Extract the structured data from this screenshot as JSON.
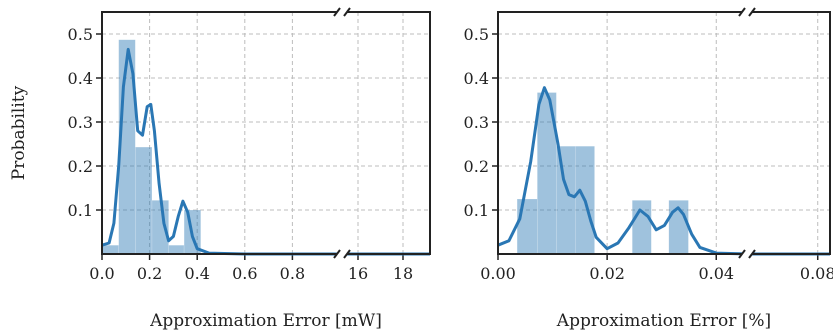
{
  "chart_data": [
    {
      "type": "histogram+kde",
      "panel": "left",
      "xlabel": "Approximation Error [mW]",
      "ylabel": "Probability",
      "ylim": [
        0,
        0.55
      ],
      "yticks": [
        0.1,
        0.2,
        0.3,
        0.4,
        0.5
      ],
      "broken_x_axis": true,
      "x_segments": [
        {
          "xlim": [
            0.0,
            1.0
          ],
          "ticks": [
            0.0,
            0.2,
            0.4,
            0.6,
            0.8
          ],
          "tick_labels": [
            "0.0",
            "0.2",
            "0.4",
            "0.6",
            "0.8"
          ]
        },
        {
          "xlim": [
            15.2,
            19.2
          ],
          "ticks": [
            16,
            18
          ],
          "tick_labels": [
            "16",
            "18"
          ]
        }
      ],
      "grid": true,
      "color": "#2a77b4",
      "bins": [
        {
          "x0": 0.0,
          "x1": 0.07,
          "value": 0.02
        },
        {
          "x0": 0.07,
          "x1": 0.14,
          "value": 0.487
        },
        {
          "x0": 0.14,
          "x1": 0.21,
          "value": 0.243
        },
        {
          "x0": 0.21,
          "x1": 0.28,
          "value": 0.122
        },
        {
          "x0": 0.28,
          "x1": 0.345,
          "value": 0.02
        },
        {
          "x0": 0.345,
          "x1": 0.415,
          "value": 0.1
        }
      ],
      "kde": [
        [
          0.0,
          0.02
        ],
        [
          0.03,
          0.025
        ],
        [
          0.05,
          0.07
        ],
        [
          0.07,
          0.2
        ],
        [
          0.09,
          0.38
        ],
        [
          0.11,
          0.465
        ],
        [
          0.13,
          0.41
        ],
        [
          0.15,
          0.28
        ],
        [
          0.17,
          0.27
        ],
        [
          0.19,
          0.335
        ],
        [
          0.205,
          0.34
        ],
        [
          0.22,
          0.28
        ],
        [
          0.24,
          0.16
        ],
        [
          0.26,
          0.07
        ],
        [
          0.28,
          0.03
        ],
        [
          0.3,
          0.04
        ],
        [
          0.32,
          0.085
        ],
        [
          0.34,
          0.12
        ],
        [
          0.36,
          0.095
        ],
        [
          0.38,
          0.04
        ],
        [
          0.4,
          0.012
        ],
        [
          0.45,
          0.002
        ],
        [
          0.6,
          0.0
        ],
        [
          1.0,
          0.0
        ],
        [
          15.2,
          0.0
        ],
        [
          19.2,
          0.0
        ]
      ]
    },
    {
      "type": "histogram+kde",
      "panel": "right",
      "xlabel": "Approximation Error [%]",
      "ylabel": "",
      "ylim": [
        0,
        0.55
      ],
      "yticks": [
        0.1,
        0.2,
        0.3,
        0.4,
        0.5
      ],
      "broken_x_axis": true,
      "x_segments": [
        {
          "xlim": [
            0.0,
            0.046
          ],
          "ticks": [
            0.0,
            0.02,
            0.04
          ],
          "tick_labels": [
            "0.00",
            "0.02",
            "0.04"
          ]
        },
        {
          "xlim": [
            0.052,
            0.085
          ],
          "ticks": [
            0.08
          ],
          "tick_labels": [
            "0.08"
          ]
        }
      ],
      "grid": true,
      "color": "#2a77b4",
      "bins": [
        {
          "x0": 0.0035,
          "x1": 0.0072,
          "value": 0.125
        },
        {
          "x0": 0.0072,
          "x1": 0.0107,
          "value": 0.367
        },
        {
          "x0": 0.0107,
          "x1": 0.0142,
          "value": 0.245
        },
        {
          "x0": 0.0142,
          "x1": 0.0177,
          "value": 0.245
        },
        {
          "x0": 0.0246,
          "x1": 0.0281,
          "value": 0.122
        },
        {
          "x0": 0.0313,
          "x1": 0.0349,
          "value": 0.122
        }
      ],
      "kde": [
        [
          0.0,
          0.02
        ],
        [
          0.002,
          0.03
        ],
        [
          0.004,
          0.08
        ],
        [
          0.006,
          0.21
        ],
        [
          0.0075,
          0.34
        ],
        [
          0.0085,
          0.378
        ],
        [
          0.0095,
          0.35
        ],
        [
          0.011,
          0.25
        ],
        [
          0.012,
          0.17
        ],
        [
          0.013,
          0.135
        ],
        [
          0.014,
          0.13
        ],
        [
          0.015,
          0.145
        ],
        [
          0.016,
          0.12
        ],
        [
          0.017,
          0.075
        ],
        [
          0.018,
          0.038
        ],
        [
          0.02,
          0.012
        ],
        [
          0.022,
          0.025
        ],
        [
          0.024,
          0.06
        ],
        [
          0.026,
          0.1
        ],
        [
          0.0275,
          0.085
        ],
        [
          0.029,
          0.055
        ],
        [
          0.0305,
          0.065
        ],
        [
          0.032,
          0.095
        ],
        [
          0.033,
          0.105
        ],
        [
          0.034,
          0.09
        ],
        [
          0.0355,
          0.045
        ],
        [
          0.037,
          0.015
        ],
        [
          0.04,
          0.002
        ],
        [
          0.046,
          0.0
        ],
        [
          0.052,
          0.0
        ],
        [
          0.085,
          0.0
        ]
      ]
    }
  ]
}
